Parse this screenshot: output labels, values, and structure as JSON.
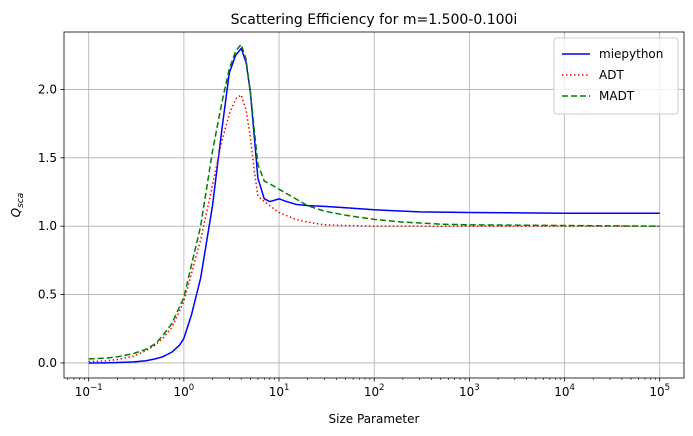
{
  "chart_data": {
    "type": "line",
    "title": "Scattering Efficiency for m=1.500-0.100i",
    "xlabel": "Size Parameter",
    "ylabel": "Q_sca",
    "xscale": "log",
    "xlim": [
      0.055,
      180000
    ],
    "ylim": [
      -0.11,
      2.42
    ],
    "xticks": [
      {
        "value": 0.1,
        "base": "10",
        "exp": "−1"
      },
      {
        "value": 1,
        "base": "10",
        "exp": "0"
      },
      {
        "value": 10,
        "base": "10",
        "exp": "1"
      },
      {
        "value": 100,
        "base": "10",
        "exp": "2"
      },
      {
        "value": 1000,
        "base": "10",
        "exp": "3"
      },
      {
        "value": 10000,
        "base": "10",
        "exp": "4"
      },
      {
        "value": 100000,
        "base": "10",
        "exp": "5"
      }
    ],
    "yticks": [
      {
        "value": 0.0,
        "label": "0.0"
      },
      {
        "value": 0.5,
        "label": "0.5"
      },
      {
        "value": 1.0,
        "label": "1.0"
      },
      {
        "value": 1.5,
        "label": "1.5"
      },
      {
        "value": 2.0,
        "label": "2.0"
      }
    ],
    "grid": true,
    "legend": "top-right",
    "series": [
      {
        "name": "miepython",
        "color": "#0000ff",
        "style": "solid",
        "x": [
          0.1,
          0.15,
          0.2,
          0.3,
          0.4,
          0.5,
          0.6,
          0.75,
          0.9,
          1.0,
          1.2,
          1.5,
          2.0,
          2.5,
          3.0,
          3.5,
          4.0,
          4.5,
          5.0,
          5.5,
          6.0,
          7.0,
          8.0,
          9.0,
          10,
          12,
          15,
          20,
          30,
          50,
          100,
          300,
          1000,
          10000,
          100000
        ],
        "y": [
          0.0,
          0.001,
          0.003,
          0.008,
          0.016,
          0.03,
          0.045,
          0.08,
          0.13,
          0.18,
          0.35,
          0.62,
          1.15,
          1.7,
          2.12,
          2.25,
          2.3,
          2.2,
          1.98,
          1.65,
          1.35,
          1.2,
          1.18,
          1.19,
          1.2,
          1.18,
          1.16,
          1.15,
          1.145,
          1.135,
          1.12,
          1.105,
          1.1,
          1.095,
          1.095
        ]
      },
      {
        "name": "ADT",
        "color": "#ff0000",
        "style": "dotted",
        "x": [
          0.1,
          0.15,
          0.2,
          0.3,
          0.4,
          0.5,
          0.6,
          0.75,
          1.0,
          1.5,
          2.0,
          2.5,
          3.0,
          3.5,
          4.0,
          4.5,
          5.0,
          5.5,
          6.0,
          7.0,
          8.0,
          10,
          15,
          20,
          30,
          50,
          100,
          1000,
          100000
        ],
        "y": [
          0.01,
          0.015,
          0.025,
          0.05,
          0.09,
          0.13,
          0.18,
          0.26,
          0.45,
          0.9,
          1.3,
          1.62,
          1.82,
          1.93,
          1.96,
          1.85,
          1.65,
          1.4,
          1.22,
          1.18,
          1.15,
          1.1,
          1.05,
          1.03,
          1.01,
          1.005,
          1.0,
          1.0,
          1.0
        ]
      },
      {
        "name": "MADT",
        "color": "#008000",
        "style": "dashed",
        "x": [
          0.1,
          0.15,
          0.2,
          0.3,
          0.4,
          0.5,
          0.6,
          0.75,
          1.0,
          1.5,
          2.0,
          2.5,
          3.0,
          3.5,
          4.0,
          4.5,
          5.0,
          5.5,
          6.0,
          7.0,
          8.0,
          10,
          15,
          20,
          30,
          50,
          100,
          200,
          500,
          1000,
          100000
        ],
        "y": [
          0.03,
          0.035,
          0.045,
          0.07,
          0.1,
          0.14,
          0.2,
          0.29,
          0.48,
          1.0,
          1.55,
          1.9,
          2.15,
          2.28,
          2.33,
          2.22,
          1.98,
          1.7,
          1.45,
          1.33,
          1.31,
          1.27,
          1.2,
          1.15,
          1.11,
          1.08,
          1.05,
          1.03,
          1.015,
          1.01,
          1.0
        ]
      }
    ]
  }
}
